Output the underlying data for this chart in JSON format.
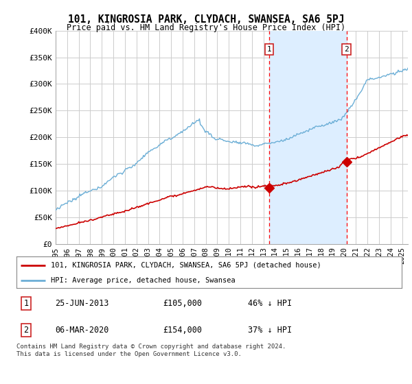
{
  "title": "101, KINGROSIA PARK, CLYDACH, SWANSEA, SA6 5PJ",
  "subtitle": "Price paid vs. HM Land Registry's House Price Index (HPI)",
  "ylabel_ticks": [
    "£0",
    "£50K",
    "£100K",
    "£150K",
    "£200K",
    "£250K",
    "£300K",
    "£350K",
    "£400K"
  ],
  "ylim": [
    0,
    400000
  ],
  "xlim_start": 1995.0,
  "xlim_end": 2025.5,
  "sale1_x": 2013.48,
  "sale1_y": 105000,
  "sale2_x": 2020.18,
  "sale2_y": 154000,
  "sale1_label": "25-JUN-2013",
  "sale1_price": "£105,000",
  "sale1_note": "46% ↓ HPI",
  "sale2_label": "06-MAR-2020",
  "sale2_price": "£154,000",
  "sale2_note": "37% ↓ HPI",
  "legend_line1": "101, KINGROSIA PARK, CLYDACH, SWANSEA, SA6 5PJ (detached house)",
  "legend_line2": "HPI: Average price, detached house, Swansea",
  "footer": "Contains HM Land Registry data © Crown copyright and database right 2024.\nThis data is licensed under the Open Government Licence v3.0.",
  "hpi_color": "#6baed6",
  "price_color": "#cc0000",
  "bg_color": "#ffffff",
  "grid_color": "#cccccc",
  "shade_color": "#ddeeff"
}
